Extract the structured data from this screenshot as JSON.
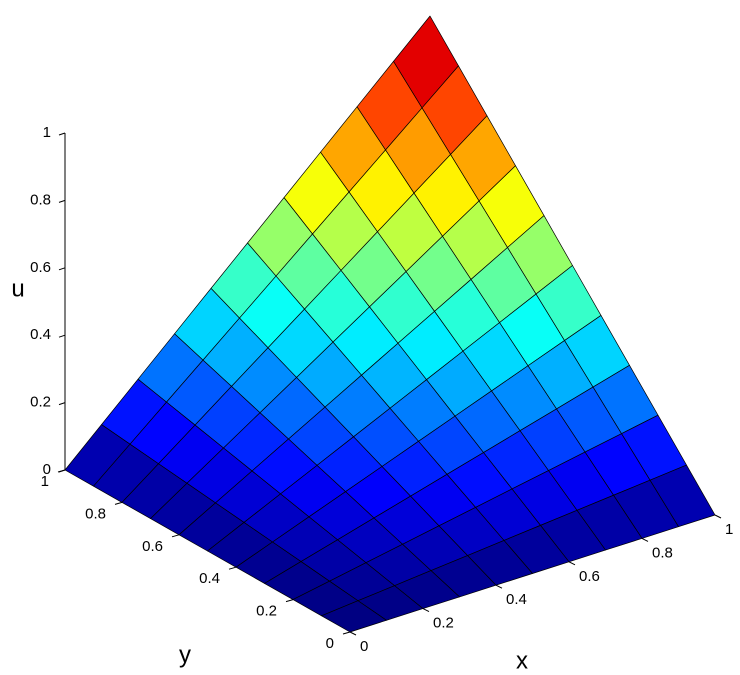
{
  "chart_data": {
    "type": "surface",
    "xlabel": "x",
    "ylabel": "y",
    "zlabel": "u",
    "x": [
      0,
      0.1,
      0.2,
      0.3,
      0.4,
      0.5,
      0.6,
      0.7,
      0.8,
      0.9,
      1
    ],
    "y": [
      0,
      0.1,
      0.2,
      0.3,
      0.4,
      0.5,
      0.6,
      0.7,
      0.8,
      0.9,
      1
    ],
    "z": [
      [
        0,
        0,
        0,
        0,
        0,
        0,
        0,
        0,
        0,
        0,
        0
      ],
      [
        0,
        0.01,
        0.02,
        0.03,
        0.04,
        0.05,
        0.06,
        0.07,
        0.08,
        0.09,
        0.1
      ],
      [
        0,
        0.02,
        0.04,
        0.06,
        0.08,
        0.1,
        0.12,
        0.14,
        0.16,
        0.18,
        0.2
      ],
      [
        0,
        0.03,
        0.06,
        0.09,
        0.12,
        0.15,
        0.18,
        0.21,
        0.24,
        0.27,
        0.3
      ],
      [
        0,
        0.04,
        0.08,
        0.12,
        0.16,
        0.2,
        0.24,
        0.28,
        0.32,
        0.36,
        0.4
      ],
      [
        0,
        0.05,
        0.1,
        0.15,
        0.2,
        0.25,
        0.3,
        0.35,
        0.4,
        0.45,
        0.5
      ],
      [
        0,
        0.06,
        0.12,
        0.18,
        0.24,
        0.3,
        0.36,
        0.42,
        0.48,
        0.54,
        0.6
      ],
      [
        0,
        0.07,
        0.14,
        0.21,
        0.28,
        0.35,
        0.42,
        0.49,
        0.56,
        0.63,
        0.7
      ],
      [
        0,
        0.08,
        0.16,
        0.24,
        0.32,
        0.4,
        0.48,
        0.56,
        0.64,
        0.72,
        0.8
      ],
      [
        0,
        0.09,
        0.18,
        0.27,
        0.36,
        0.45,
        0.54,
        0.63,
        0.72,
        0.81,
        0.9
      ],
      [
        0,
        0.1,
        0.2,
        0.3,
        0.4,
        0.5,
        0.6,
        0.7,
        0.8,
        0.9,
        1
      ]
    ],
    "xlim": [
      0,
      1
    ],
    "ylim": [
      0,
      1
    ],
    "zlim": [
      0,
      1
    ],
    "xticks": [
      0,
      0.2,
      0.4,
      0.6,
      0.8,
      1
    ],
    "yticks": [
      0,
      0.2,
      0.4,
      0.6,
      0.8,
      1
    ],
    "zticks": [
      0,
      0.2,
      0.4,
      0.6,
      0.8,
      1
    ],
    "colormap": "jet"
  }
}
